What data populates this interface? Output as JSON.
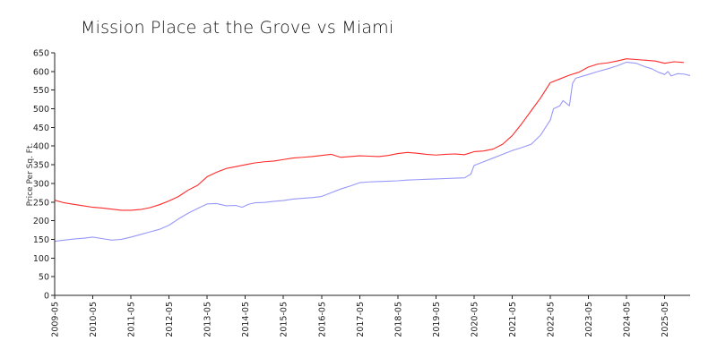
{
  "chart_data": {
    "type": "line",
    "title": "Mission Place at the Grove vs Miami",
    "xlabel": "",
    "ylabel": "Price Per Sq. Ft.",
    "ylim": [
      0,
      650
    ],
    "yticks": [
      0,
      50,
      100,
      150,
      200,
      250,
      300,
      350,
      400,
      450,
      500,
      550,
      600,
      650
    ],
    "ytick_labels": [
      "0",
      "50",
      "100",
      "150",
      "200",
      "250",
      "300",
      "350",
      "400",
      "450",
      "500",
      "550",
      "600",
      "650"
    ],
    "xlim": [
      "2009-05",
      "2026-01"
    ],
    "xticks": [
      "2009-05",
      "2010-05",
      "2011-05",
      "2012-05",
      "2013-05",
      "2014-05",
      "2015-05",
      "2016-05",
      "2017-05",
      "2018-05",
      "2019-05",
      "2020-05",
      "2021-05",
      "2022-05",
      "2023-05",
      "2024-05",
      "2025-05"
    ],
    "grid": false,
    "legend": "none",
    "series": [
      {
        "color": "#ff2a2a",
        "points": [
          [
            "2009-05",
            255
          ],
          [
            "2009-08",
            248
          ],
          [
            "2009-11",
            244
          ],
          [
            "2010-02",
            240
          ],
          [
            "2010-05",
            236
          ],
          [
            "2010-08",
            234
          ],
          [
            "2010-11",
            231
          ],
          [
            "2011-02",
            228
          ],
          [
            "2011-05",
            228
          ],
          [
            "2011-08",
            230
          ],
          [
            "2011-11",
            235
          ],
          [
            "2012-02",
            243
          ],
          [
            "2012-05",
            253
          ],
          [
            "2012-08",
            265
          ],
          [
            "2012-11",
            282
          ],
          [
            "2013-02",
            295
          ],
          [
            "2013-05",
            318
          ],
          [
            "2013-08",
            330
          ],
          [
            "2013-11",
            340
          ],
          [
            "2014-02",
            345
          ],
          [
            "2014-05",
            350
          ],
          [
            "2014-08",
            355
          ],
          [
            "2014-11",
            358
          ],
          [
            "2015-02",
            360
          ],
          [
            "2015-05",
            364
          ],
          [
            "2015-08",
            368
          ],
          [
            "2015-11",
            370
          ],
          [
            "2016-02",
            372
          ],
          [
            "2016-05",
            375
          ],
          [
            "2016-08",
            378
          ],
          [
            "2016-11",
            370
          ],
          [
            "2017-02",
            372
          ],
          [
            "2017-05",
            374
          ],
          [
            "2017-08",
            373
          ],
          [
            "2017-11",
            372
          ],
          [
            "2018-02",
            375
          ],
          [
            "2018-05",
            380
          ],
          [
            "2018-08",
            383
          ],
          [
            "2018-11",
            381
          ],
          [
            "2019-02",
            378
          ],
          [
            "2019-05",
            376
          ],
          [
            "2019-08",
            378
          ],
          [
            "2019-11",
            379
          ],
          [
            "2020-02",
            377
          ],
          [
            "2020-05",
            385
          ],
          [
            "2020-08",
            387
          ],
          [
            "2020-11",
            392
          ],
          [
            "2021-02",
            405
          ],
          [
            "2021-05",
            428
          ],
          [
            "2021-08",
            460
          ],
          [
            "2021-11",
            495
          ],
          [
            "2022-02",
            530
          ],
          [
            "2022-05",
            570
          ],
          [
            "2022-08",
            580
          ],
          [
            "2022-11",
            590
          ],
          [
            "2023-02",
            598
          ],
          [
            "2023-05",
            612
          ],
          [
            "2023-08",
            620
          ],
          [
            "2023-11",
            623
          ],
          [
            "2024-02",
            628
          ],
          [
            "2024-05",
            634
          ],
          [
            "2024-08",
            632
          ],
          [
            "2024-11",
            630
          ],
          [
            "2025-02",
            628
          ],
          [
            "2025-05",
            622
          ],
          [
            "2025-08",
            626
          ],
          [
            "2025-11",
            624
          ]
        ]
      },
      {
        "color": "#9898f8",
        "points": [
          [
            "2009-05",
            145
          ],
          [
            "2009-08",
            148
          ],
          [
            "2009-11",
            151
          ],
          [
            "2010-02",
            153
          ],
          [
            "2010-05",
            156
          ],
          [
            "2010-08",
            152
          ],
          [
            "2010-11",
            148
          ],
          [
            "2011-02",
            150
          ],
          [
            "2011-05",
            156
          ],
          [
            "2011-08",
            163
          ],
          [
            "2011-11",
            170
          ],
          [
            "2012-02",
            177
          ],
          [
            "2012-05",
            188
          ],
          [
            "2012-08",
            205
          ],
          [
            "2012-11",
            220
          ],
          [
            "2013-02",
            233
          ],
          [
            "2013-05",
            245
          ],
          [
            "2013-08",
            246
          ],
          [
            "2013-11",
            240
          ],
          [
            "2014-02",
            241
          ],
          [
            "2014-04",
            236
          ],
          [
            "2014-06",
            244
          ],
          [
            "2014-08",
            248
          ],
          [
            "2014-11",
            249
          ],
          [
            "2015-02",
            252
          ],
          [
            "2015-05",
            254
          ],
          [
            "2015-08",
            258
          ],
          [
            "2015-11",
            260
          ],
          [
            "2016-02",
            262
          ],
          [
            "2016-05",
            265
          ],
          [
            "2016-08",
            275
          ],
          [
            "2016-11",
            285
          ],
          [
            "2017-02",
            293
          ],
          [
            "2017-05",
            302
          ],
          [
            "2017-08",
            304
          ],
          [
            "2017-11",
            305
          ],
          [
            "2018-02",
            306
          ],
          [
            "2018-05",
            307
          ],
          [
            "2018-08",
            309
          ],
          [
            "2018-11",
            310
          ],
          [
            "2019-02",
            311
          ],
          [
            "2019-05",
            312
          ],
          [
            "2019-08",
            313
          ],
          [
            "2019-11",
            314
          ],
          [
            "2020-02",
            315
          ],
          [
            "2020-04",
            325
          ],
          [
            "2020-05",
            348
          ],
          [
            "2020-08",
            358
          ],
          [
            "2020-11",
            368
          ],
          [
            "2021-02",
            378
          ],
          [
            "2021-05",
            388
          ],
          [
            "2021-08",
            396
          ],
          [
            "2021-11",
            405
          ],
          [
            "2022-02",
            430
          ],
          [
            "2022-05",
            470
          ],
          [
            "2022-06",
            500
          ],
          [
            "2022-08",
            508
          ],
          [
            "2022-09",
            522
          ],
          [
            "2022-11",
            508
          ],
          [
            "2022-12",
            568
          ],
          [
            "2023-01",
            582
          ],
          [
            "2023-05",
            592
          ],
          [
            "2023-08",
            600
          ],
          [
            "2023-11",
            607
          ],
          [
            "2024-02",
            615
          ],
          [
            "2024-05",
            625
          ],
          [
            "2024-08",
            622
          ],
          [
            "2024-11",
            612
          ],
          [
            "2025-01",
            607
          ],
          [
            "2025-03",
            598
          ],
          [
            "2025-05",
            592
          ],
          [
            "2025-06",
            600
          ],
          [
            "2025-07",
            588
          ],
          [
            "2025-09",
            594
          ],
          [
            "2025-11",
            593
          ],
          [
            "2026-01",
            589
          ]
        ]
      }
    ]
  }
}
